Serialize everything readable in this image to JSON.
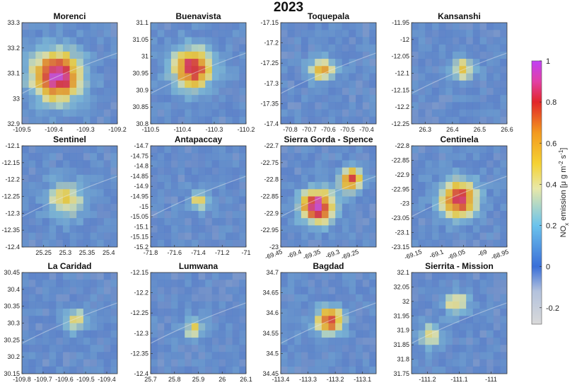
{
  "figure_title": "2023",
  "colorbar": {
    "label": "NOx emission [μ g m⁻² s⁻¹]",
    "label_main": "NO",
    "label_sub": "x",
    "label_rest": " emission [",
    "label_mu": "μ g m",
    "label_exp1": "-2",
    "label_s": " s",
    "label_exp2": "-1",
    "label_close": "]",
    "ticks": [
      1,
      0.8,
      0.6,
      0.4,
      0.2,
      0,
      -0.2
    ],
    "tick_labels": [
      "1",
      "0.8",
      "0.6",
      "0.4",
      "0.2",
      "0",
      "-0.2"
    ],
    "range": [
      -0.28,
      1.0
    ],
    "colormap": [
      {
        "v": -0.28,
        "c": "#d9d9d9"
      },
      {
        "v": -0.12,
        "c": "#b3c2dd"
      },
      {
        "v": 0.0,
        "c": "#3a6fd8"
      },
      {
        "v": 0.2,
        "c": "#6bc3ec"
      },
      {
        "v": 0.38,
        "c": "#e8e8a8"
      },
      {
        "v": 0.5,
        "c": "#f5d233"
      },
      {
        "v": 0.65,
        "c": "#f39a1e"
      },
      {
        "v": 0.8,
        "c": "#e2262a"
      },
      {
        "v": 0.9,
        "c": "#e23fa5"
      },
      {
        "v": 1.0,
        "c": "#c042f5"
      }
    ]
  },
  "chart_data": [
    {
      "type": "heatmap",
      "title": "Morenci",
      "xlim": [
        -109.5,
        -109.2
      ],
      "ylim": [
        32.9,
        33.3
      ],
      "xticks": [
        -109.5,
        -109.4,
        -109.3,
        -109.2
      ],
      "xtick_labels": [
        "-109.5",
        "-109.4",
        "-109.3",
        "-109.2"
      ],
      "yticks": [
        32.9,
        33,
        33.1,
        33.2,
        33.3
      ],
      "ytick_labels": [
        "32.9",
        "33",
        "33.1",
        "33.2",
        "33.3"
      ],
      "hotspots": [
        {
          "x": -109.39,
          "y": 33.09,
          "peak": 0.95,
          "spread": 0.055
        }
      ]
    },
    {
      "type": "heatmap",
      "title": "Buenavista",
      "xlim": [
        -110.5,
        -110.2
      ],
      "ylim": [
        30.8,
        31.1
      ],
      "xticks": [
        -110.5,
        -110.4,
        -110.3,
        -110.2
      ],
      "xtick_labels": [
        "-110.5",
        "-110.4",
        "-110.3",
        "-110.2"
      ],
      "yticks": [
        30.8,
        30.85,
        30.9,
        30.95,
        31,
        31.05,
        31.1
      ],
      "ytick_labels": [
        "30.8",
        "30.85",
        "30.9",
        "30.95",
        "31",
        "31.05",
        "31.1"
      ],
      "hotspots": [
        {
          "x": -110.37,
          "y": 30.965,
          "peak": 0.85,
          "spread": 0.045
        }
      ]
    },
    {
      "type": "heatmap",
      "title": "Toquepala",
      "xlim": [
        -70.85,
        -70.35
      ],
      "ylim": [
        -17.4,
        -17.15
      ],
      "xticks": [
        -70.8,
        -70.7,
        -70.6,
        -70.5,
        -70.4
      ],
      "xtick_labels": [
        "-70.8",
        "-70.7",
        "-70.6",
        "-70.5",
        "-70.4"
      ],
      "yticks": [
        -17.4,
        -17.35,
        -17.3,
        -17.25,
        -17.2,
        -17.15
      ],
      "ytick_labels": [
        "-17.4",
        "-17.35",
        "-17.3",
        "-17.25",
        "-17.2",
        "-17.15"
      ],
      "hotspots": [
        {
          "x": -70.63,
          "y": -17.265,
          "peak": 0.6,
          "spread": 0.045
        }
      ]
    },
    {
      "type": "heatmap",
      "title": "Kansanshi",
      "xlim": [
        26.25,
        26.6
      ],
      "ylim": [
        -12.25,
        -11.95
      ],
      "xticks": [
        26.3,
        26.4,
        26.5,
        26.6
      ],
      "xtick_labels": [
        "26.3",
        "26.4",
        "26.5",
        "26.6"
      ],
      "yticks": [
        -12.25,
        -12.2,
        -12.15,
        -12.1,
        -12.05,
        -12,
        -11.95
      ],
      "ytick_labels": [
        "-12.25",
        "-12.2",
        "-12.15",
        "-12.1",
        "-12.05",
        "-12",
        "-11.95"
      ],
      "hotspots": [
        {
          "x": 26.44,
          "y": -12.09,
          "peak": 0.5,
          "spread": 0.03
        }
      ]
    },
    {
      "type": "heatmap",
      "title": "Sentinel",
      "xlim": [
        25.2,
        25.42
      ],
      "ylim": [
        -12.4,
        -12.1
      ],
      "xticks": [
        25.25,
        25.3,
        25.35,
        25.4
      ],
      "xtick_labels": [
        "25.25",
        "25.3",
        "25.35",
        "25.4"
      ],
      "yticks": [
        -12.4,
        -12.35,
        -12.3,
        -12.25,
        -12.2,
        -12.15,
        -12.1
      ],
      "ytick_labels": [
        "-12.4",
        "-12.35",
        "-12.3",
        "-12.25",
        "-12.2",
        "-12.15",
        "-12.1"
      ],
      "hotspots": [
        {
          "x": 25.3,
          "y": -12.26,
          "peak": 0.47,
          "spread": 0.03
        }
      ]
    },
    {
      "type": "heatmap",
      "title": "Antapaccay",
      "xlim": [
        -71.8,
        -71.0
      ],
      "ylim": [
        -15.2,
        -14.7
      ],
      "xticks": [
        -71.8,
        -71.6,
        -71.4,
        -71.2,
        -71
      ],
      "xtick_labels": [
        "-71.8",
        "-71.6",
        "-71.4",
        "-71.2",
        "-71"
      ],
      "yticks": [
        -15.2,
        -15.15,
        -15.1,
        -15.05,
        -15,
        -14.95,
        -14.9,
        -14.85,
        -14.8,
        -14.75,
        -14.7
      ],
      "ytick_labels": [
        "-15.2",
        "-15.15",
        "-15.1",
        "-15.05",
        "-15",
        "-14.95",
        "-14.9",
        "-14.85",
        "-14.8",
        "-14.75",
        "-14.7"
      ],
      "hotspots": [
        {
          "x": -71.39,
          "y": -14.97,
          "peak": 0.46,
          "spread": 0.06
        }
      ]
    },
    {
      "type": "heatmap",
      "title": "Sierra Gorda - Spence",
      "xlim": [
        -69.45,
        -69.2
      ],
      "ylim": [
        -23.0,
        -22.7
      ],
      "xticks": [
        -69.45,
        -69.4,
        -69.35,
        -69.3,
        -69.25
      ],
      "xtick_labels": [
        "-69.45",
        "-69.4",
        "-69.35",
        "-69.3",
        "-69.25"
      ],
      "yticks": [
        -23,
        -22.95,
        -22.9,
        -22.85,
        -22.8,
        -22.75,
        -22.7
      ],
      "ytick_labels": [
        "-23",
        "-22.95",
        "-22.9",
        "-22.85",
        "-22.8",
        "-22.75",
        "-22.7"
      ],
      "hotspots": [
        {
          "x": -69.355,
          "y": -22.88,
          "peak": 0.98,
          "spread": 0.03
        },
        {
          "x": -69.265,
          "y": -22.8,
          "peak": 0.78,
          "spread": 0.022
        }
      ]
    },
    {
      "type": "heatmap",
      "title": "Centinela",
      "xlim": [
        -69.17,
        -68.95
      ],
      "ylim": [
        -23.15,
        -22.8
      ],
      "xticks": [
        -69.15,
        -69.1,
        -69.05,
        -69,
        -68.95
      ],
      "xtick_labels": [
        "-69.15",
        "-69.1",
        "-69.05",
        "-69",
        "-68.95"
      ],
      "yticks": [
        -23.15,
        -23.1,
        -23.05,
        -23,
        -22.95,
        -22.9,
        -22.85,
        -22.8
      ],
      "ytick_labels": [
        "-23.15",
        "-23.1",
        "-23.05",
        "-23",
        "-22.95",
        "-22.9",
        "-22.85",
        "-22.8"
      ],
      "hotspots": [
        {
          "x": -69.06,
          "y": -22.985,
          "peak": 0.85,
          "spread": 0.03
        }
      ]
    },
    {
      "type": "heatmap",
      "title": "La Caridad",
      "xlim": [
        -109.8,
        -109.35
      ],
      "ylim": [
        30.15,
        30.45
      ],
      "xticks": [
        -109.8,
        -109.7,
        -109.6,
        -109.5,
        -109.4
      ],
      "xtick_labels": [
        "-109.8",
        "-109.7",
        "-109.6",
        "-109.5",
        "-109.4"
      ],
      "yticks": [
        30.15,
        30.2,
        30.25,
        30.3,
        30.35,
        30.4,
        30.45
      ],
      "ytick_labels": [
        "30.15",
        "30.2",
        "30.25",
        "30.3",
        "30.35",
        "30.4",
        "30.45"
      ],
      "hotspots": [
        {
          "x": -109.55,
          "y": 30.31,
          "peak": 0.42,
          "spread": 0.04
        }
      ]
    },
    {
      "type": "heatmap",
      "title": "Lumwana",
      "xlim": [
        25.7,
        26.1
      ],
      "ylim": [
        -12.4,
        -12.15
      ],
      "xticks": [
        25.7,
        25.8,
        25.9,
        26,
        26.1
      ],
      "xtick_labels": [
        "25.7",
        "25.8",
        "25.9",
        "26",
        "26.1"
      ],
      "yticks": [
        -12.4,
        -12.35,
        -12.3,
        -12.25,
        -12.2,
        -12.15
      ],
      "ytick_labels": [
        "-12.4",
        "-12.35",
        "-12.3",
        "-12.25",
        "-12.2",
        "-12.15"
      ],
      "hotspots": [
        {
          "x": 25.88,
          "y": -12.29,
          "peak": 0.45,
          "spread": 0.03
        }
      ]
    },
    {
      "type": "heatmap",
      "title": "Bagdad",
      "xlim": [
        -113.4,
        -113.05
      ],
      "ylim": [
        34.45,
        34.7
      ],
      "xticks": [
        -113.4,
        -113.3,
        -113.2,
        -113.1
      ],
      "xtick_labels": [
        "-113.4",
        "-113.3",
        "-113.2",
        "-113.1"
      ],
      "yticks": [
        34.45,
        34.5,
        34.55,
        34.6,
        34.65,
        34.7
      ],
      "ytick_labels": [
        "34.45",
        "34.5",
        "34.55",
        "34.6",
        "34.65",
        "34.7"
      ],
      "hotspots": [
        {
          "x": -113.22,
          "y": 34.58,
          "peak": 0.82,
          "spread": 0.035
        }
      ]
    },
    {
      "type": "heatmap",
      "title": "Sierrita - Mission",
      "xlim": [
        -111.25,
        -110.95
      ],
      "ylim": [
        31.75,
        32.1
      ],
      "xticks": [
        -111.2,
        -111.1,
        -111
      ],
      "xtick_labels": [
        "-111.2",
        "-111.1",
        "-111"
      ],
      "yticks": [
        31.75,
        31.8,
        31.85,
        31.9,
        31.95,
        32,
        32.05,
        32.1
      ],
      "ytick_labels": [
        "31.75",
        "31.8",
        "31.85",
        "31.9",
        "31.95",
        "32",
        "32.05",
        "32.1"
      ],
      "hotspots": [
        {
          "x": -111.11,
          "y": 31.995,
          "peak": 0.47,
          "spread": 0.025
        },
        {
          "x": -111.19,
          "y": 31.88,
          "peak": 0.46,
          "spread": 0.025
        }
      ]
    }
  ]
}
